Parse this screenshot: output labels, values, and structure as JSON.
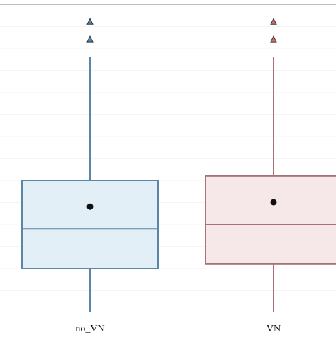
{
  "chart_data": {
    "type": "boxplot",
    "title": "",
    "xlabel": "",
    "ylabel": "",
    "grid": true,
    "legend": "none",
    "ylim": [
      -0.5,
      6.5
    ],
    "categories": [
      "no_VN",
      "VN"
    ],
    "series": [
      {
        "category": "no_VN",
        "min": -0.5,
        "q1": 0.5,
        "median": 1.4,
        "q3": 2.5,
        "max": 5.3,
        "mean": 1.9,
        "outliers": [
          6.1,
          5.7
        ],
        "stroke": "#5b86a7",
        "fill": "#e3eff7",
        "outlier_fill": "#4a88be"
      },
      {
        "category": "VN",
        "min": -0.5,
        "q1": 0.6,
        "median": 1.5,
        "q3": 2.6,
        "max": 5.3,
        "mean": 2.0,
        "outliers": [
          6.1,
          5.7
        ],
        "stroke": "#a67278",
        "fill": "#f6e7e9",
        "outlier_fill": "#d96f6f"
      }
    ]
  }
}
